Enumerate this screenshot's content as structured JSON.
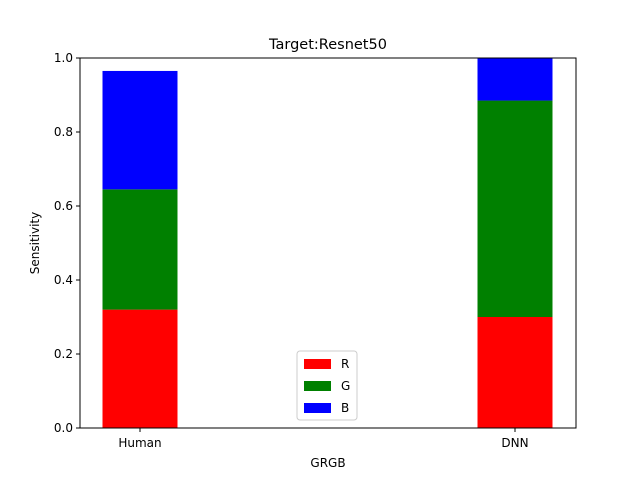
{
  "chart_data": {
    "type": "bar",
    "stacked": true,
    "title": "Target:Resnet50",
    "xlabel": "GRGB",
    "ylabel": "Sensitivity",
    "categories": [
      "Human",
      "DNN"
    ],
    "series": [
      {
        "name": "R",
        "color": "#ff0000",
        "values": [
          0.32,
          0.3
        ]
      },
      {
        "name": "G",
        "color": "#008000",
        "values": [
          0.325,
          0.585
        ]
      },
      {
        "name": "B",
        "color": "#0000ff",
        "values": [
          0.32,
          0.115
        ]
      }
    ],
    "ylim": [
      0,
      1.0
    ],
    "yticks": [
      "0.0",
      "0.2",
      "0.4",
      "0.6",
      "0.8",
      "1.0"
    ],
    "grid": false,
    "legend_position": "lower-center"
  }
}
